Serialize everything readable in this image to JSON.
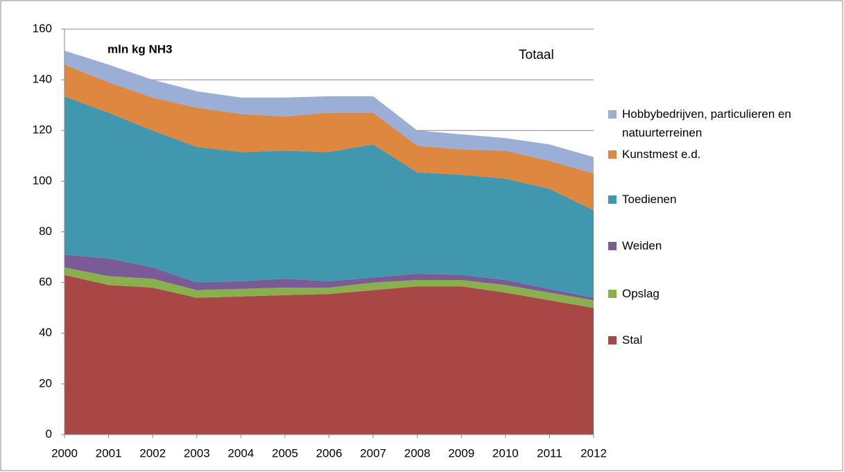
{
  "chart_data": {
    "type": "stacked-area",
    "annotations": [
      "mln kg NH3",
      "Totaal"
    ],
    "categories": [
      "2000",
      "2001",
      "2002",
      "2003",
      "2004",
      "2005",
      "2006",
      "2007",
      "2008",
      "2009",
      "2010",
      "2011",
      "2012"
    ],
    "ylim": [
      0,
      160
    ],
    "yticks": [
      0,
      20,
      40,
      60,
      80,
      100,
      120,
      140,
      160
    ],
    "grid": true,
    "series": [
      {
        "name": "Stal",
        "color": "#a84745",
        "values": [
          63,
          59,
          58,
          54,
          54.5,
          55,
          55.5,
          57,
          58.5,
          58.5,
          56,
          53,
          50
        ]
      },
      {
        "name": "Opslag",
        "color": "#8ab04d",
        "values": [
          3,
          3.5,
          3.5,
          3,
          3,
          3,
          2.5,
          3,
          2.5,
          2.5,
          3,
          3,
          3
        ]
      },
      {
        "name": "Weiden",
        "color": "#7b5b96",
        "values": [
          5,
          7,
          4.5,
          3,
          3,
          3.5,
          2.5,
          2,
          2.5,
          2,
          2,
          1.5,
          1
        ]
      },
      {
        "name": "Toedienen",
        "color": "#4198ae",
        "values": [
          62.5,
          57.5,
          54,
          53.5,
          51,
          50.5,
          51,
          52.5,
          40,
          39.5,
          40,
          39.5,
          34.5
        ]
      },
      {
        "name": "Kunstmest e.d.",
        "color": "#dd8741",
        "values": [
          12.5,
          12,
          13,
          15.5,
          15,
          13.5,
          15.5,
          12.5,
          10.5,
          10,
          11,
          11,
          14.5
        ]
      },
      {
        "name": "Hobbybedrijven, particulieren en natuurterreinen",
        "color": "#9aaed6",
        "values": [
          5.5,
          7,
          7,
          6.5,
          6.5,
          7.5,
          6.5,
          6.5,
          6,
          6,
          5,
          6.5,
          6.5
        ]
      }
    ]
  }
}
